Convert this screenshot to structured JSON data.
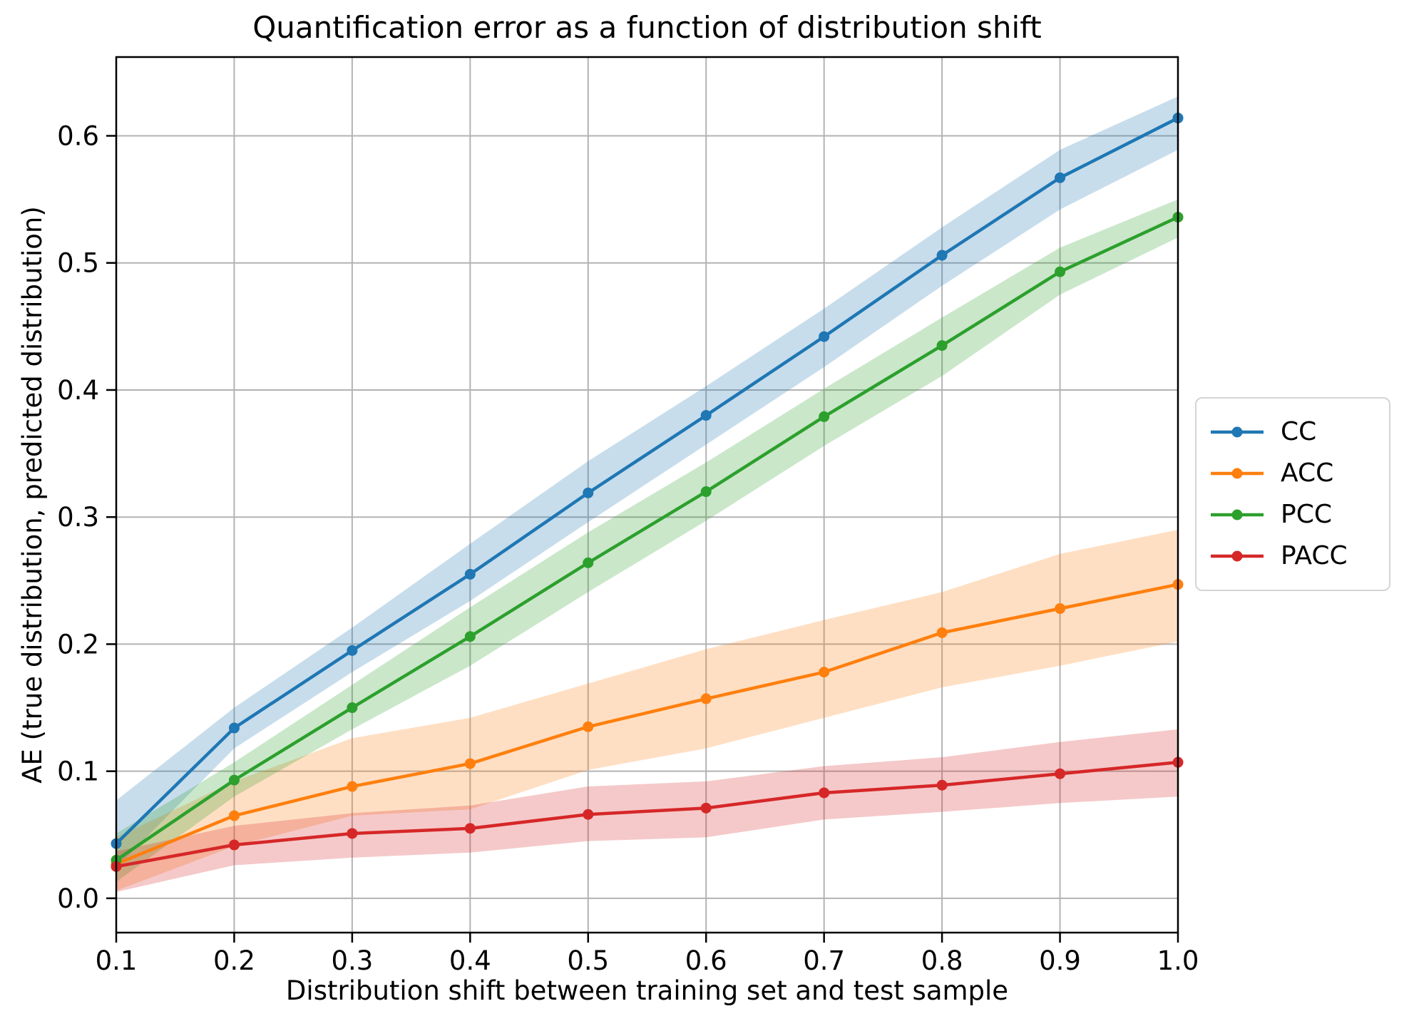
{
  "title": "Quantification error as a function of distribution shift",
  "chart_data": {
    "type": "line",
    "title": "Quantification error as a function of distribution shift",
    "xlabel": "Distribution shift between training set and test sample",
    "ylabel": "AE (true distribution, predicted distribution)",
    "x": [
      0.1,
      0.2,
      0.3,
      0.4,
      0.5,
      0.6,
      0.7,
      0.8,
      0.9,
      1.0
    ],
    "xtick_labels": [
      "0.1",
      "0.2",
      "0.3",
      "0.4",
      "0.5",
      "0.6",
      "0.7",
      "0.8",
      "0.9",
      "1.0"
    ],
    "ytick_values": [
      0.0,
      0.1,
      0.2,
      0.3,
      0.4,
      0.5,
      0.6
    ],
    "ytick_labels": [
      "0.0",
      "0.1",
      "0.2",
      "0.3",
      "0.4",
      "0.5",
      "0.6"
    ],
    "xlim": [
      0.1,
      1.0
    ],
    "ylim": [
      -0.027,
      0.662
    ],
    "grid": true,
    "grid_color": "#b3b3b3",
    "legend_position": "outside-right",
    "band_alpha": 0.25,
    "series": [
      {
        "name": "CC",
        "color": "#1f77b4",
        "values": [
          0.043,
          0.134,
          0.195,
          0.255,
          0.319,
          0.38,
          0.442,
          0.506,
          0.567,
          0.614
        ],
        "band_lower": [
          0.024,
          0.118,
          0.178,
          0.234,
          0.296,
          0.357,
          0.418,
          0.482,
          0.542,
          0.589
        ],
        "band_upper": [
          0.077,
          0.15,
          0.213,
          0.279,
          0.344,
          0.403,
          0.464,
          0.528,
          0.589,
          0.631
        ]
      },
      {
        "name": "ACC",
        "color": "#ff7f0e",
        "values": [
          0.027,
          0.065,
          0.088,
          0.106,
          0.135,
          0.157,
          0.178,
          0.209,
          0.228,
          0.247
        ],
        "band_lower": [
          0.006,
          0.041,
          0.065,
          0.07,
          0.101,
          0.118,
          0.142,
          0.166,
          0.183,
          0.202
        ],
        "band_upper": [
          0.048,
          0.092,
          0.126,
          0.142,
          0.169,
          0.196,
          0.219,
          0.241,
          0.271,
          0.29
        ]
      },
      {
        "name": "PCC",
        "color": "#2ca02c",
        "values": [
          0.03,
          0.093,
          0.15,
          0.206,
          0.264,
          0.32,
          0.379,
          0.435,
          0.493,
          0.536
        ],
        "band_lower": [
          0.013,
          0.08,
          0.133,
          0.183,
          0.241,
          0.297,
          0.356,
          0.411,
          0.475,
          0.52
        ],
        "band_upper": [
          0.051,
          0.107,
          0.168,
          0.229,
          0.288,
          0.343,
          0.401,
          0.457,
          0.512,
          0.55
        ]
      },
      {
        "name": "PACC",
        "color": "#d62728",
        "values": [
          0.025,
          0.042,
          0.051,
          0.055,
          0.066,
          0.071,
          0.083,
          0.089,
          0.098,
          0.107
        ],
        "band_lower": [
          0.005,
          0.026,
          0.032,
          0.036,
          0.045,
          0.048,
          0.062,
          0.068,
          0.075,
          0.08
        ],
        "band_upper": [
          0.037,
          0.057,
          0.067,
          0.073,
          0.088,
          0.092,
          0.104,
          0.111,
          0.123,
          0.133
        ]
      }
    ]
  }
}
